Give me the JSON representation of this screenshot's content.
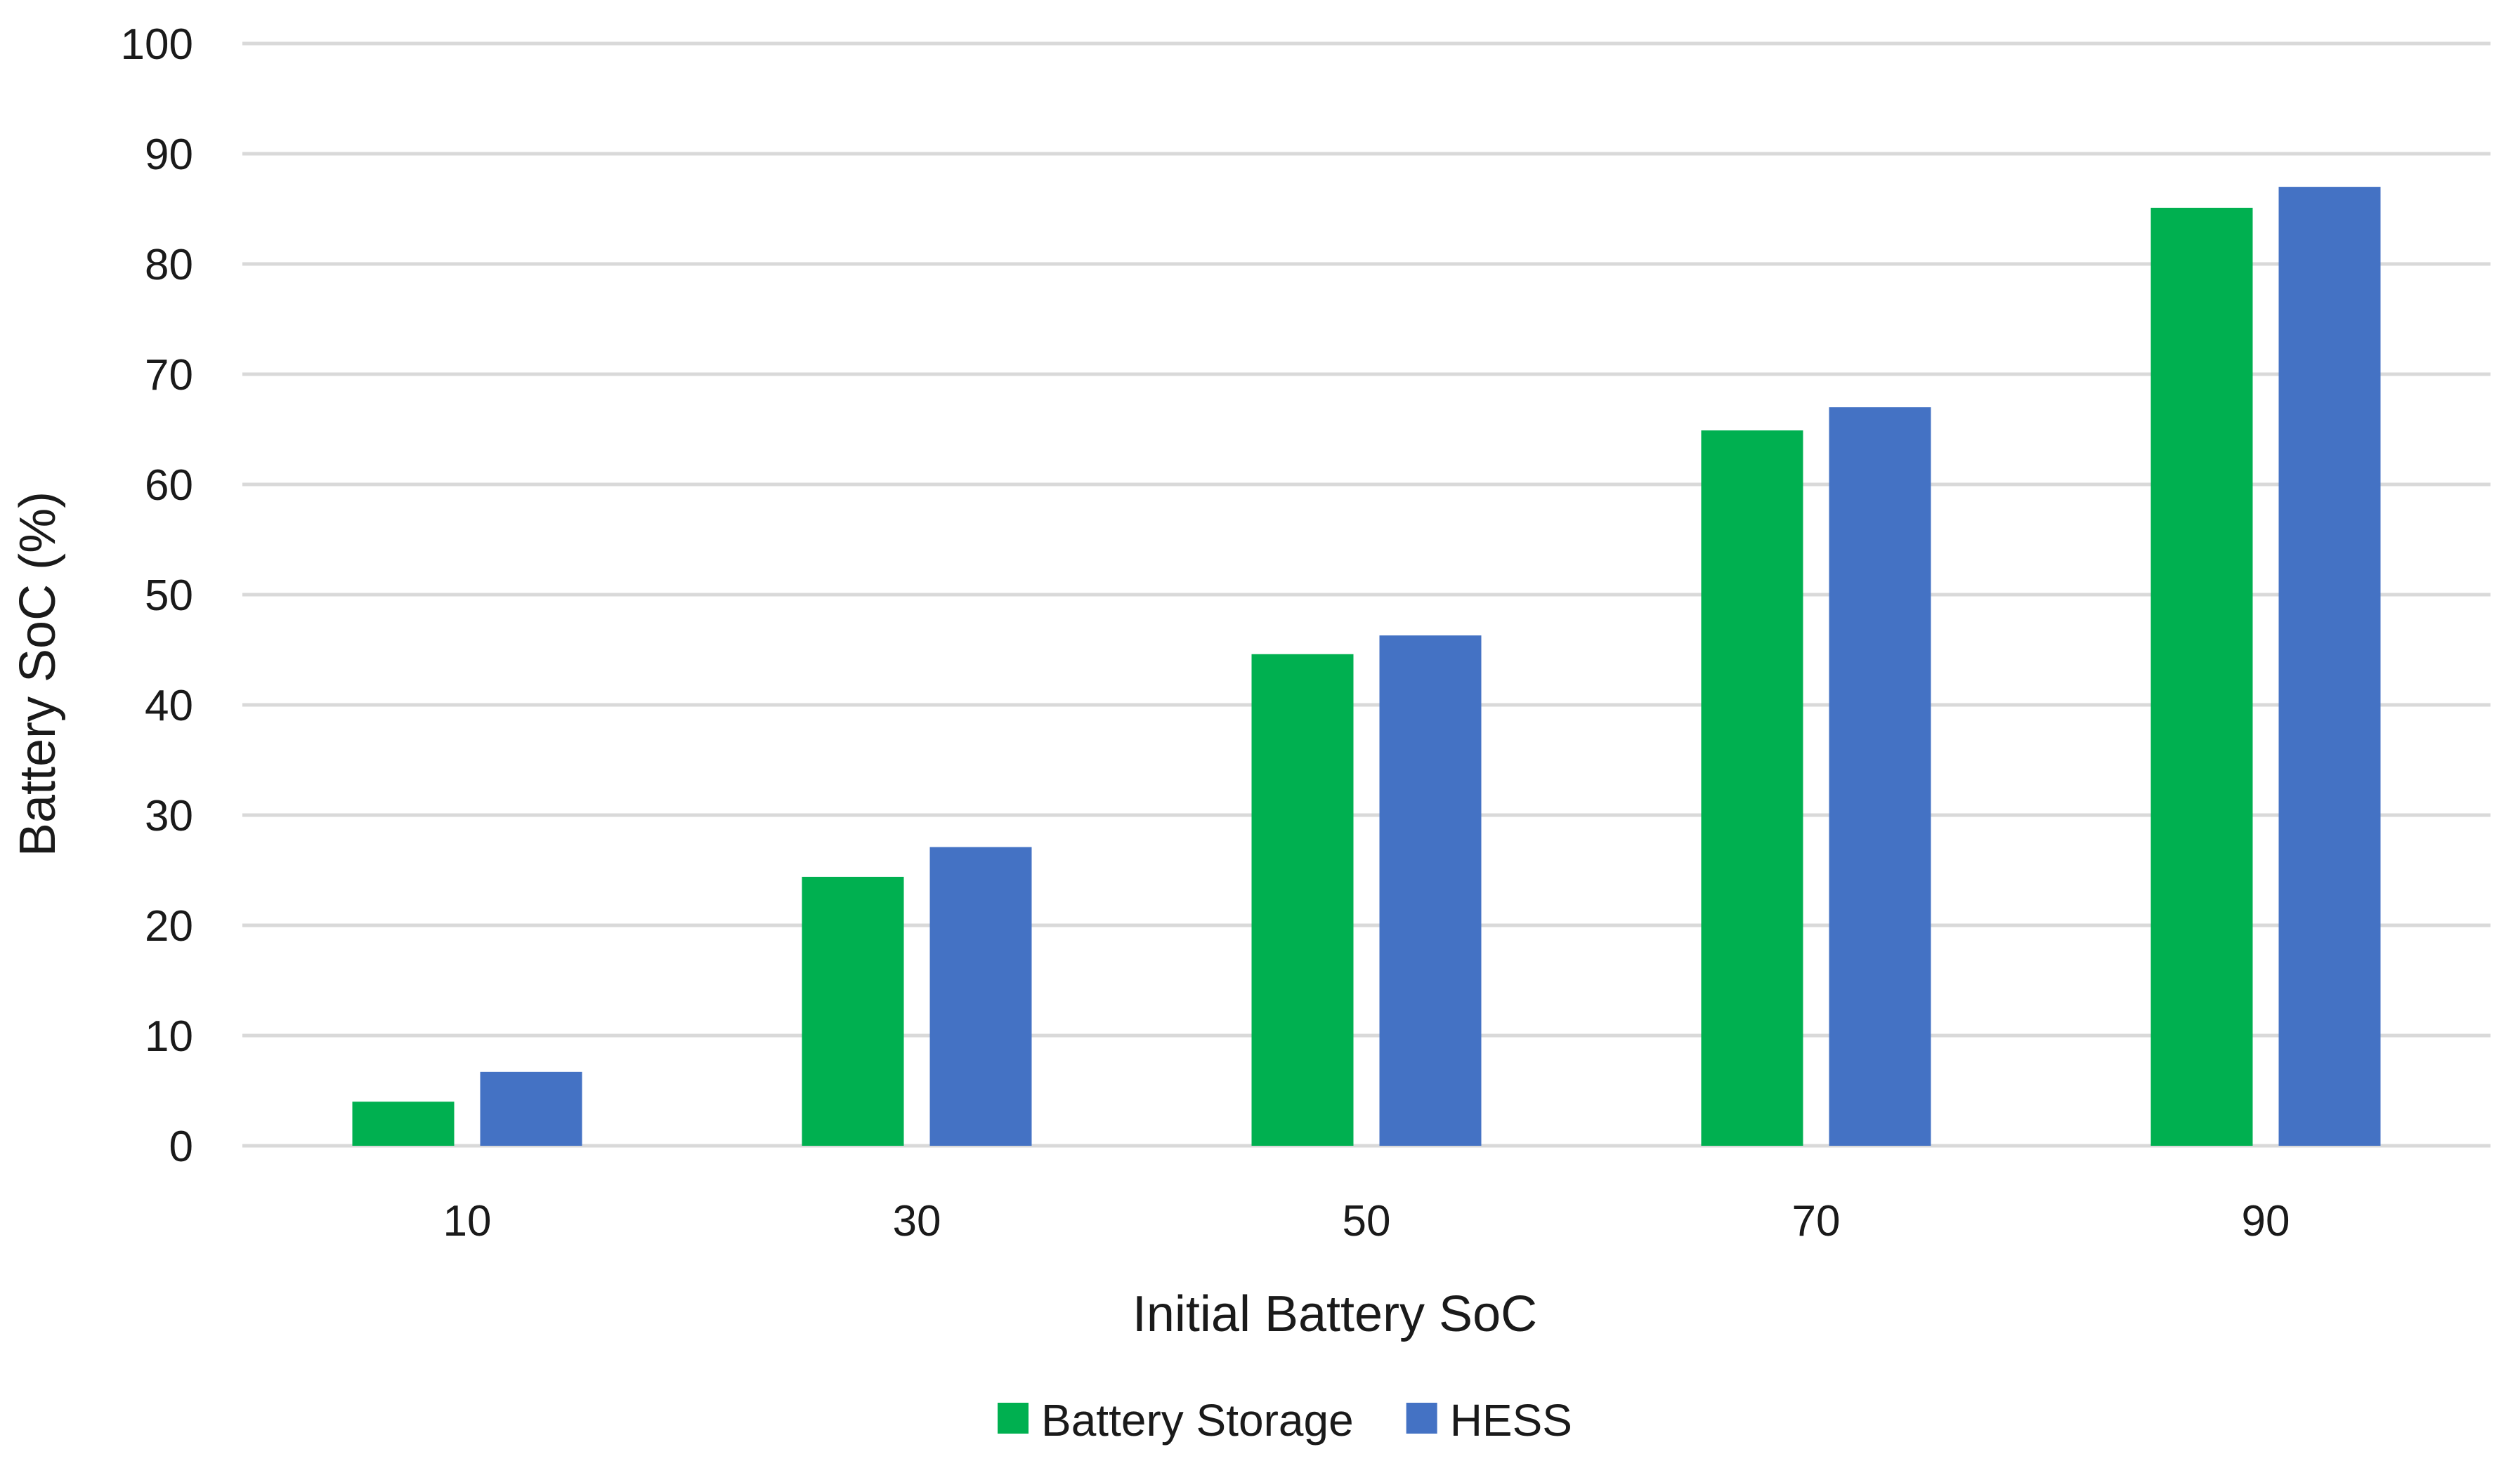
{
  "chart_data": {
    "type": "bar",
    "categories": [
      "10",
      "30",
      "50",
      "70",
      "90"
    ],
    "series": [
      {
        "name": "Battery Storage",
        "color": "#00b050",
        "values": [
          4,
          24.4,
          44.6,
          64.9,
          85.1
        ]
      },
      {
        "name": "HESS",
        "color": "#4472c4",
        "values": [
          6.7,
          27.1,
          46.3,
          67,
          87
        ]
      }
    ],
    "title": "",
    "xlabel": "Initial Battery SoC",
    "ylabel": "Battery SoC (%)",
    "ylim": [
      0,
      100
    ],
    "yticks": [
      "0",
      "10",
      "20",
      "30",
      "40",
      "50",
      "60",
      "70",
      "80",
      "90",
      "100"
    ],
    "grid": true,
    "legend_position": "bottom",
    "colors": {
      "gridline": "#d9d9d9",
      "axis_text": "#1a1a1a"
    }
  }
}
